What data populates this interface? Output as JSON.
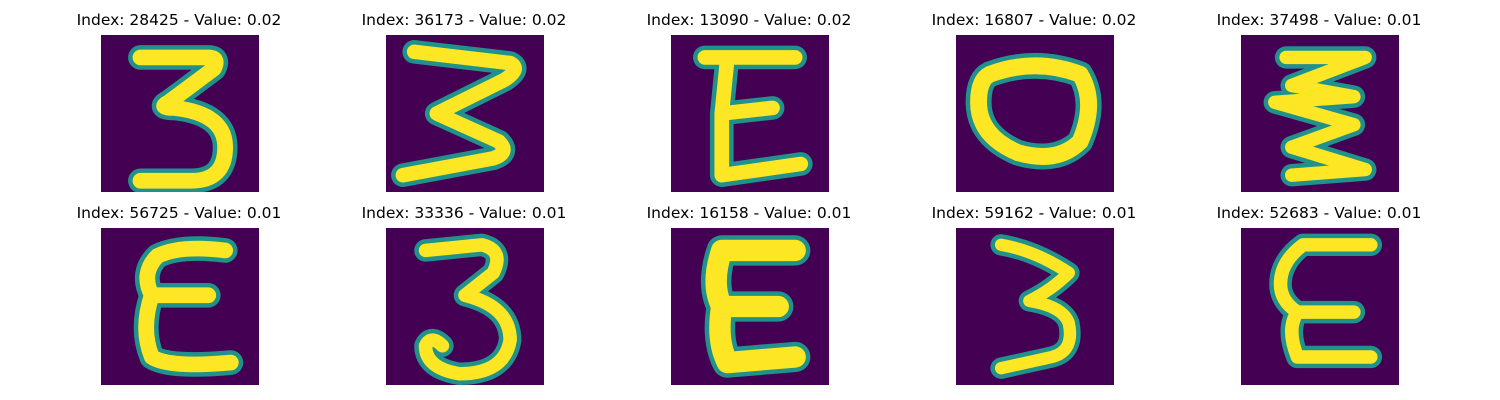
{
  "figure": {
    "colormap": "viridis",
    "background_color": "#440154",
    "stroke_edge_color": "#21918c",
    "stroke_mid_color": "#7ad151",
    "stroke_core_color": "#fde725",
    "panels": [
      {
        "title": "Index: 28425 - Value: 0.02",
        "glyph": "3"
      },
      {
        "title": "Index: 36173 - Value: 0.02",
        "glyph": "3"
      },
      {
        "title": "Index: 13090 - Value: 0.02",
        "glyph": "E"
      },
      {
        "title": "Index: 16807 - Value: 0.02",
        "glyph": "O"
      },
      {
        "title": "Index: 37498 - Value: 0.01",
        "glyph": "3"
      },
      {
        "title": "Index: 56725 - Value: 0.01",
        "glyph": "E"
      },
      {
        "title": "Index: 33336 - Value: 0.01",
        "glyph": "3"
      },
      {
        "title": "Index: 16158 - Value: 0.01",
        "glyph": "E"
      },
      {
        "title": "Index: 59162 - Value: 0.01",
        "glyph": "3"
      },
      {
        "title": "Index: 52683 - Value: 0.01",
        "glyph": "E"
      }
    ]
  }
}
